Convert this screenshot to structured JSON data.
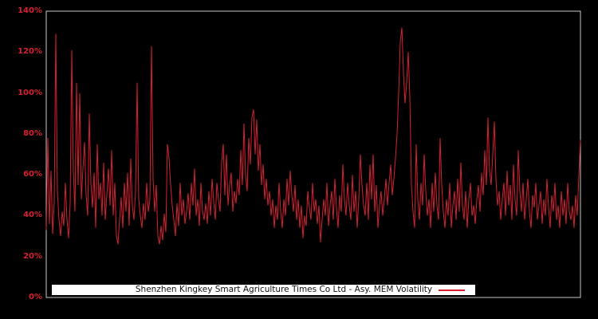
{
  "window": {
    "background_color": "#000000"
  },
  "colors": {
    "series": "#D62031",
    "axis_labels": "#D62031",
    "plot_border": "#C9C9C9",
    "legend_bg": "#FFFFFF",
    "legend_text": "#111111"
  },
  "legend": {
    "label": "Shenzhen Kingkey Smart Agriculture Times Co Ltd - Asy. MEM Volatility"
  },
  "chart_data": {
    "type": "line",
    "title": "",
    "xlabel": "",
    "ylabel": "",
    "ylim": [
      0,
      140
    ],
    "unit": "percent",
    "grid": false,
    "x_axis_labels_visible": false,
    "legend_position": "bottom-center-inside",
    "yticks": [
      "0%",
      "20%",
      "40%",
      "60%",
      "80%",
      "100%",
      "120%",
      "140%"
    ],
    "ytick_values": [
      0,
      20,
      40,
      60,
      80,
      100,
      120,
      140
    ],
    "series": [
      {
        "name": "Shenzhen Kingkey Smart Agriculture Times Co Ltd - Asy. MEM Volatility",
        "color": "#D62031",
        "values": [
          33,
          78,
          36,
          62,
          31,
          46,
          129,
          52,
          38,
          30,
          42,
          35,
          56,
          38,
          29,
          46,
          121,
          62,
          42,
          105,
          55,
          100,
          48,
          63,
          76,
          50,
          40,
          90,
          56,
          44,
          61,
          34,
          75,
          48,
          56,
          40,
          66,
          38,
          50,
          63,
          45,
          72,
          40,
          56,
          30,
          26,
          38,
          49,
          34,
          56,
          42,
          61,
          35,
          68,
          45,
          38,
          52,
          105,
          48,
          40,
          34,
          46,
          38,
          56,
          42,
          48,
          123,
          58,
          42,
          55,
          30,
          26,
          35,
          28,
          41,
          32,
          75,
          68,
          55,
          45,
          38,
          30,
          46,
          35,
          56,
          40,
          48,
          36,
          42,
          51,
          38,
          56,
          45,
          63,
          40,
          48,
          35,
          56,
          42,
          38,
          46,
          36,
          52,
          40,
          58,
          47,
          38,
          56,
          48,
          42,
          66,
          75,
          50,
          70,
          45,
          55,
          61,
          42,
          52,
          46,
          58,
          50,
          72,
          55,
          85,
          60,
          52,
          78,
          65,
          88,
          92,
          70,
          87,
          62,
          75,
          55,
          65,
          48,
          58,
          45,
          52,
          40,
          48,
          34,
          45,
          38,
          56,
          42,
          34,
          48,
          40,
          58,
          45,
          62,
          50,
          42,
          55,
          38,
          48,
          34,
          45,
          29,
          40,
          35,
          52,
          44,
          38,
          56,
          42,
          48,
          36,
          45,
          27,
          38,
          48,
          40,
          56,
          35,
          45,
          52,
          38,
          58,
          44,
          34,
          50,
          42,
          65,
          48,
          40,
          56,
          45,
          38,
          60,
          42,
          52,
          34,
          48,
          70,
          55,
          45,
          40,
          56,
          38,
          65,
          48,
          70,
          42,
          55,
          34,
          45,
          52,
          40,
          48,
          58,
          45,
          56,
          65,
          50,
          58,
          68,
          80,
          100,
          125,
          132,
          110,
          95,
          105,
          120,
          98,
          55,
          42,
          34,
          75,
          48,
          38,
          56,
          45,
          70,
          52,
          40,
          48,
          34,
          56,
          42,
          61,
          45,
          38,
          78,
          55,
          42,
          34,
          48,
          40,
          56,
          34,
          45,
          52,
          38,
          58,
          42,
          66,
          45,
          38,
          52,
          34,
          48,
          56,
          40,
          45,
          36,
          48,
          55,
          42,
          61,
          50,
          72,
          55,
          88,
          62,
          55,
          70,
          86,
          58,
          45,
          52,
          38,
          48,
          56,
          40,
          62,
          45,
          55,
          38,
          65,
          48,
          40,
          72,
          52,
          42,
          56,
          38,
          48,
          58,
          42,
          34,
          50,
          44,
          56,
          38,
          45,
          52,
          36,
          48,
          40,
          58,
          44,
          34,
          50,
          42,
          56,
          38,
          45,
          34,
          52,
          40,
          48,
          36,
          56,
          42,
          38,
          45,
          34,
          50,
          40,
          60,
          77
        ]
      }
    ]
  }
}
